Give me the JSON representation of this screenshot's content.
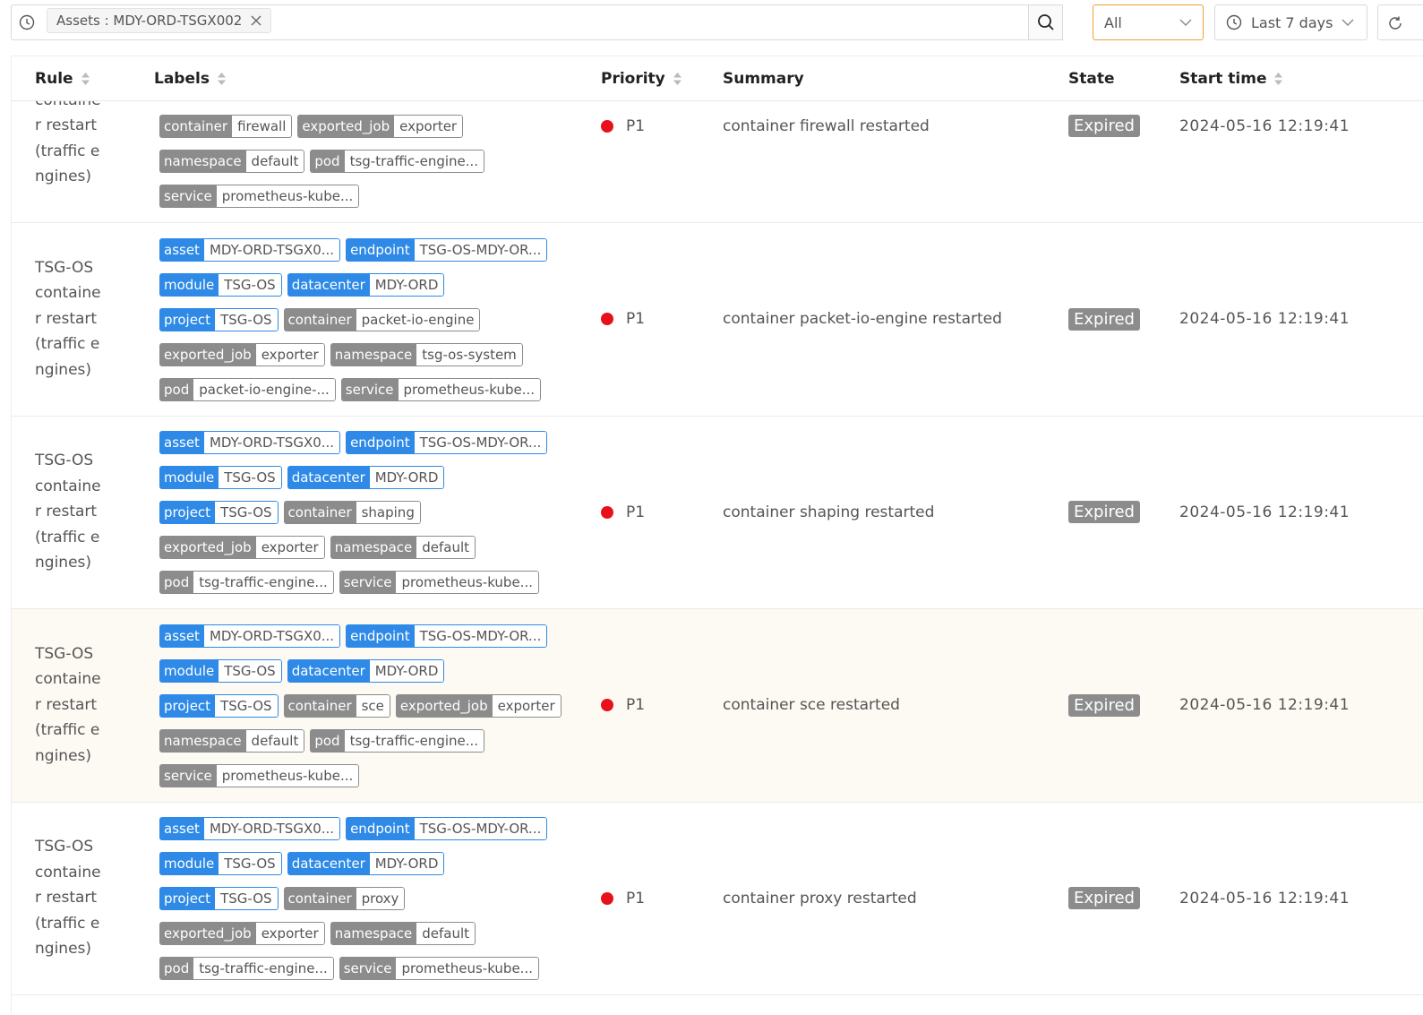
{
  "search": {
    "filter_chip": "Assets : MDY-ORD-TSGX002",
    "severity_select": "All",
    "time_range": "Last 7 days"
  },
  "table": {
    "columns": [
      {
        "title": "Rule",
        "sortable": true
      },
      {
        "title": "Labels",
        "sortable": true
      },
      {
        "title": "Priority",
        "sortable": true
      },
      {
        "title": "Summary",
        "sortable": false
      },
      {
        "title": "State",
        "sortable": false
      },
      {
        "title": "Start time",
        "sortable": true
      }
    ],
    "rows": [
      {
        "rule": "TSG-OS container restart (traffic engines)",
        "labels": [
          {
            "key": "container",
            "value": "firewall",
            "color": "#8c8c8c"
          },
          {
            "key": "exported_job",
            "value": "exporter",
            "color": "#8c8c8c"
          },
          {
            "key": "namespace",
            "value": "default",
            "color": "#8c8c8c"
          },
          {
            "key": "pod",
            "value": "tsg-traffic-engine...",
            "color": "#8c8c8c"
          },
          {
            "key": "service",
            "value": "prometheus-kube...",
            "color": "#8c8c8c"
          }
        ],
        "priority": "P1",
        "summary": "container firewall restarted",
        "state": "Expired",
        "start_time": "2024-05-16 12:19:41"
      },
      {
        "rule": "TSG-OS container restart (traffic engines)",
        "labels": [
          {
            "key": "asset",
            "value": "MDY-ORD-TSGX0...",
            "color": "#2e8ae6"
          },
          {
            "key": "endpoint",
            "value": "TSG-OS-MDY-OR...",
            "color": "#2e8ae6"
          },
          {
            "key": "module",
            "value": "TSG-OS",
            "color": "#2e8ae6"
          },
          {
            "key": "datacenter",
            "value": "MDY-ORD",
            "color": "#2e8ae6"
          },
          {
            "key": "project",
            "value": "TSG-OS",
            "color": "#2e8ae6"
          },
          {
            "key": "container",
            "value": "packet-io-engine",
            "color": "#8c8c8c"
          },
          {
            "key": "exported_job",
            "value": "exporter",
            "color": "#8c8c8c"
          },
          {
            "key": "namespace",
            "value": "tsg-os-system",
            "color": "#8c8c8c"
          },
          {
            "key": "pod",
            "value": "packet-io-engine-...",
            "color": "#8c8c8c"
          },
          {
            "key": "service",
            "value": "prometheus-kube...",
            "color": "#8c8c8c"
          }
        ],
        "priority": "P1",
        "summary": "container packet-io-engine restarted",
        "state": "Expired",
        "start_time": "2024-05-16 12:19:41"
      },
      {
        "rule": "TSG-OS container restart (traffic engines)",
        "labels": [
          {
            "key": "asset",
            "value": "MDY-ORD-TSGX0...",
            "color": "#2e8ae6"
          },
          {
            "key": "endpoint",
            "value": "TSG-OS-MDY-OR...",
            "color": "#2e8ae6"
          },
          {
            "key": "module",
            "value": "TSG-OS",
            "color": "#2e8ae6"
          },
          {
            "key": "datacenter",
            "value": "MDY-ORD",
            "color": "#2e8ae6"
          },
          {
            "key": "project",
            "value": "TSG-OS",
            "color": "#2e8ae6"
          },
          {
            "key": "container",
            "value": "shaping",
            "color": "#8c8c8c"
          },
          {
            "key": "exported_job",
            "value": "exporter",
            "color": "#8c8c8c"
          },
          {
            "key": "namespace",
            "value": "default",
            "color": "#8c8c8c"
          },
          {
            "key": "pod",
            "value": "tsg-traffic-engine...",
            "color": "#8c8c8c"
          },
          {
            "key": "service",
            "value": "prometheus-kube...",
            "color": "#8c8c8c"
          }
        ],
        "priority": "P1",
        "summary": "container shaping restarted",
        "state": "Expired",
        "start_time": "2024-05-16 12:19:41"
      },
      {
        "rule": "TSG-OS container restart (traffic engines)",
        "labels": [
          {
            "key": "asset",
            "value": "MDY-ORD-TSGX0...",
            "color": "#2e8ae6"
          },
          {
            "key": "endpoint",
            "value": "TSG-OS-MDY-OR...",
            "color": "#2e8ae6"
          },
          {
            "key": "module",
            "value": "TSG-OS",
            "color": "#2e8ae6"
          },
          {
            "key": "datacenter",
            "value": "MDY-ORD",
            "color": "#2e8ae6"
          },
          {
            "key": "project",
            "value": "TSG-OS",
            "color": "#2e8ae6"
          },
          {
            "key": "container",
            "value": "sce",
            "color": "#8c8c8c"
          },
          {
            "key": "exported_job",
            "value": "exporter",
            "color": "#8c8c8c"
          },
          {
            "key": "namespace",
            "value": "default",
            "color": "#8c8c8c"
          },
          {
            "key": "pod",
            "value": "tsg-traffic-engine...",
            "color": "#8c8c8c"
          },
          {
            "key": "service",
            "value": "prometheus-kube...",
            "color": "#8c8c8c"
          }
        ],
        "priority": "P1",
        "summary": "container sce restarted",
        "state": "Expired",
        "start_time": "2024-05-16 12:19:41",
        "highlighted": true
      },
      {
        "rule": "TSG-OS container restart (traffic engines)",
        "labels": [
          {
            "key": "asset",
            "value": "MDY-ORD-TSGX0...",
            "color": "#2e8ae6"
          },
          {
            "key": "endpoint",
            "value": "TSG-OS-MDY-OR...",
            "color": "#2e8ae6"
          },
          {
            "key": "module",
            "value": "TSG-OS",
            "color": "#2e8ae6"
          },
          {
            "key": "datacenter",
            "value": "MDY-ORD",
            "color": "#2e8ae6"
          },
          {
            "key": "project",
            "value": "TSG-OS",
            "color": "#2e8ae6"
          },
          {
            "key": "container",
            "value": "proxy",
            "color": "#8c8c8c"
          },
          {
            "key": "exported_job",
            "value": "exporter",
            "color": "#8c8c8c"
          },
          {
            "key": "namespace",
            "value": "default",
            "color": "#8c8c8c"
          },
          {
            "key": "pod",
            "value": "tsg-traffic-engine...",
            "color": "#8c8c8c"
          },
          {
            "key": "service",
            "value": "prometheus-kube...",
            "color": "#8c8c8c"
          }
        ],
        "priority": "P1",
        "summary": "container proxy restarted",
        "state": "Expired",
        "start_time": "2024-05-16 12:19:41"
      }
    ]
  }
}
